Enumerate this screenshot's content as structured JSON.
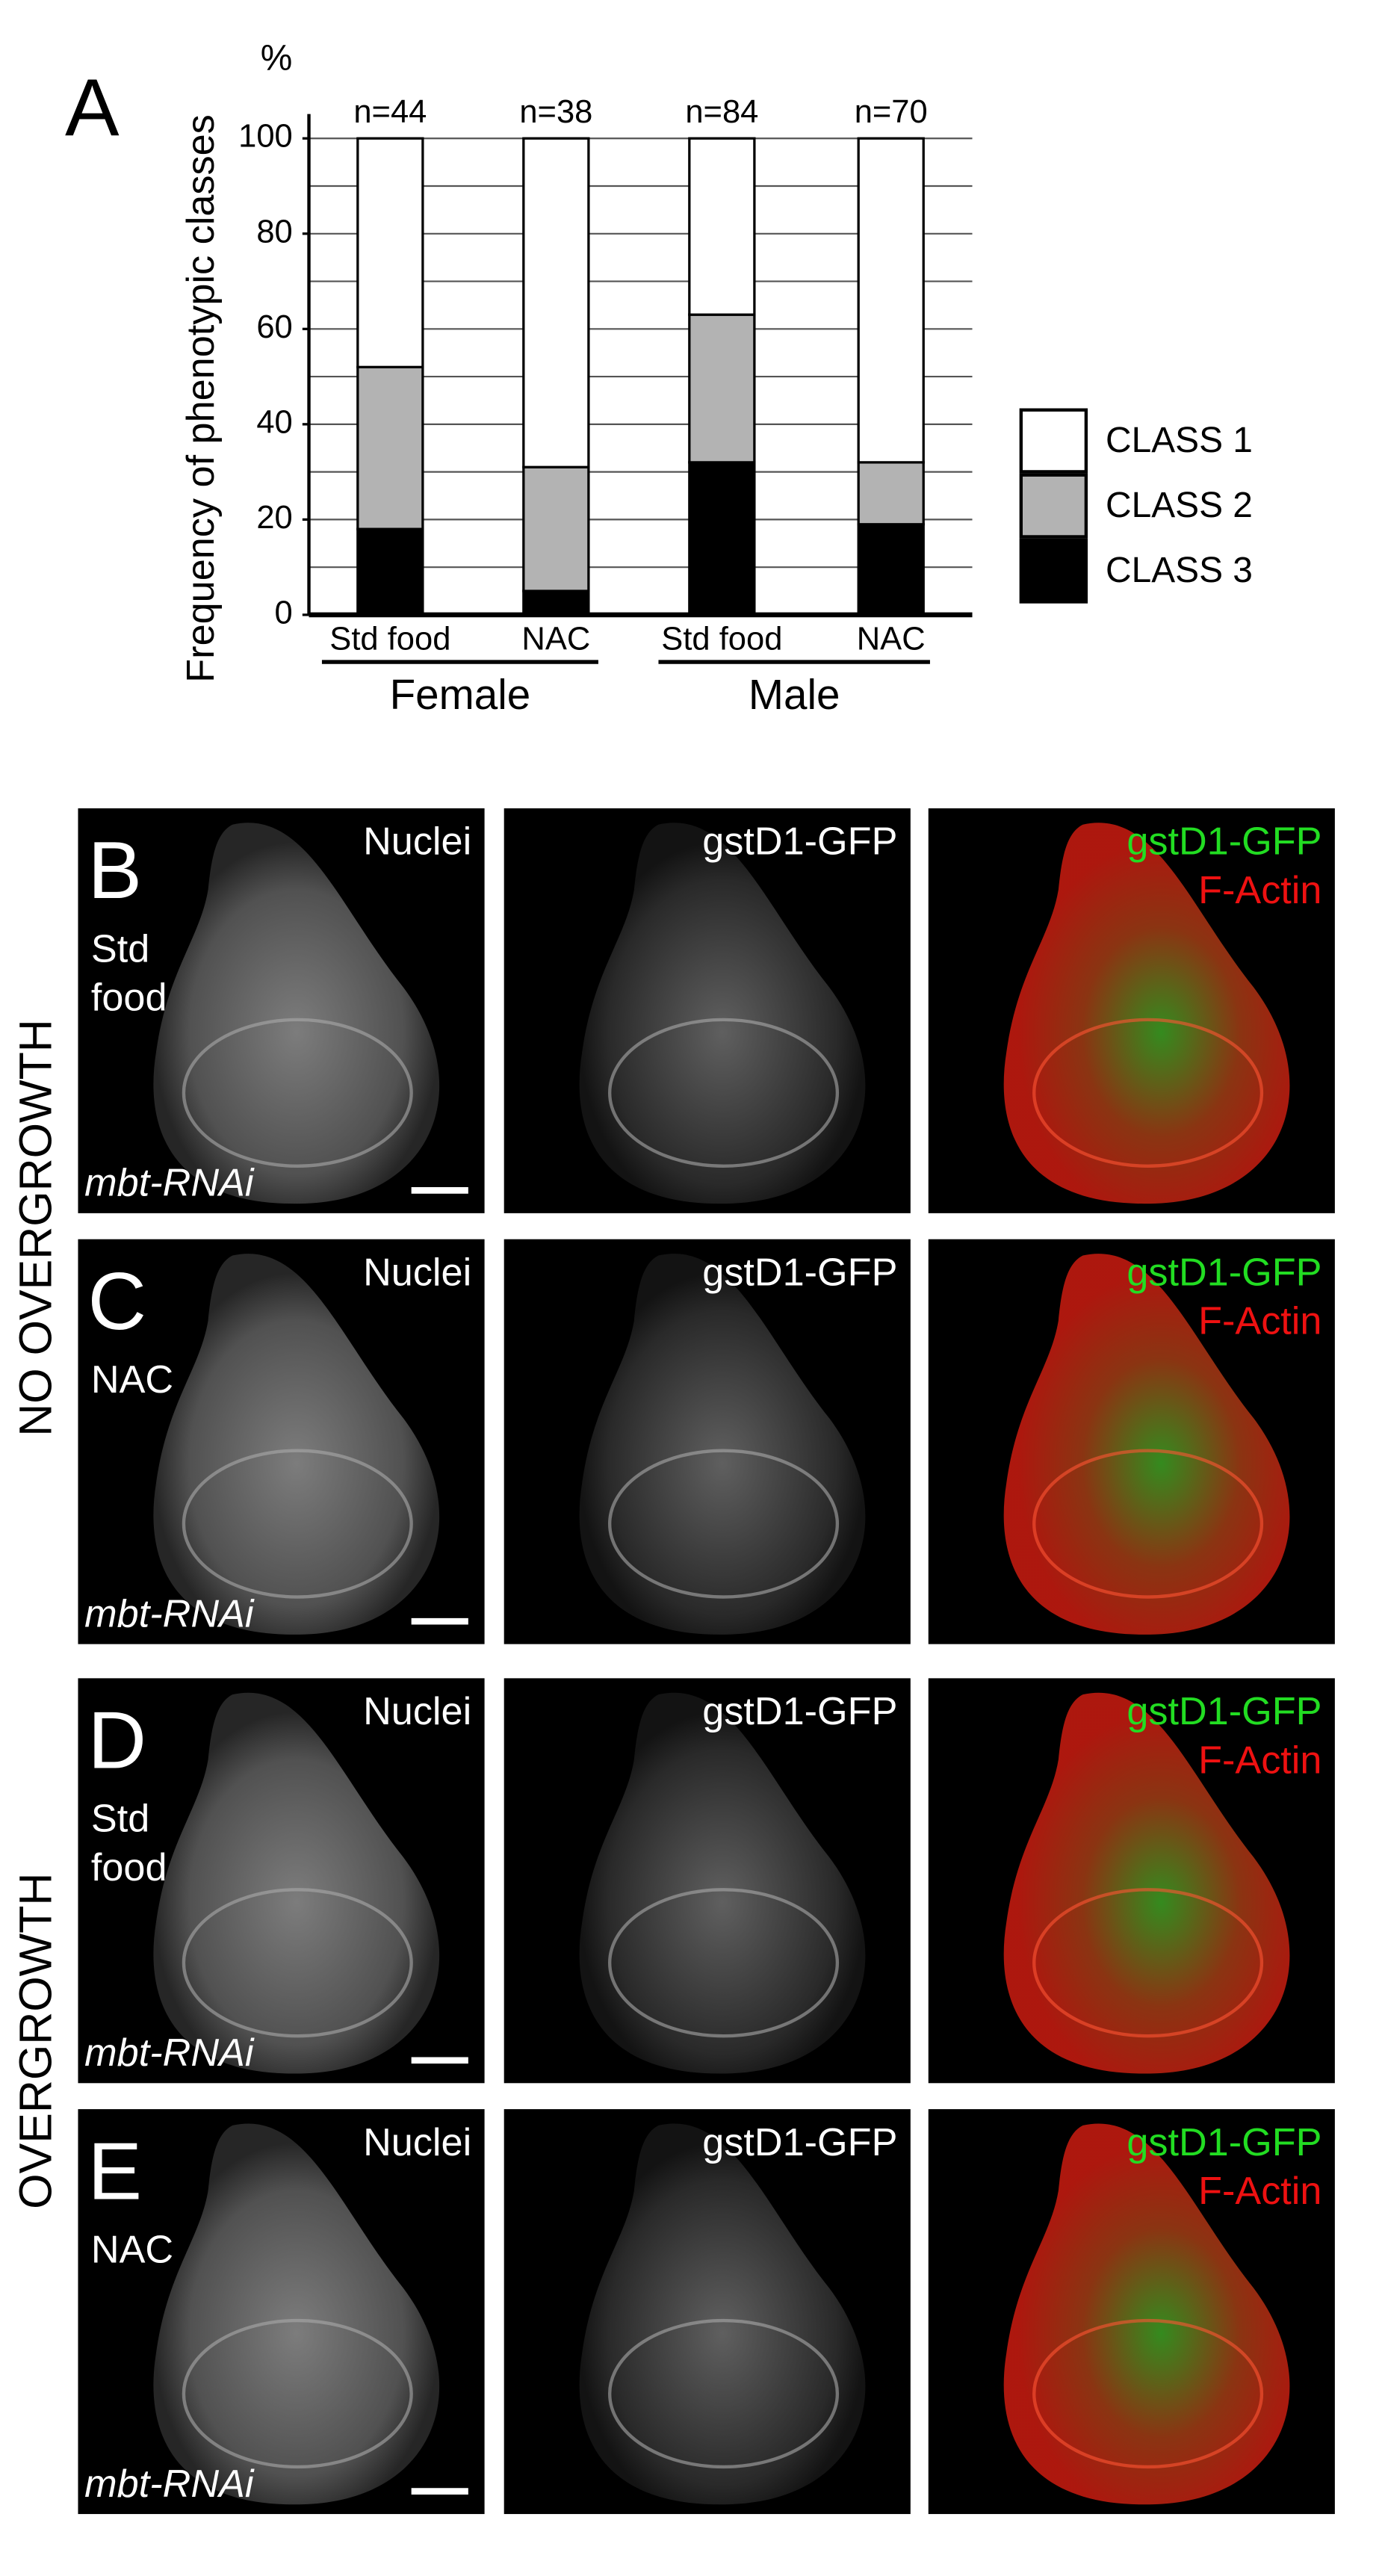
{
  "chart_data": {
    "type": "bar",
    "stacked": true,
    "panel_label": "A",
    "unit_label": "%",
    "y_label": "Frequency of phenotypic classes",
    "categories": [
      "Std food",
      "NAC",
      "Std food",
      "NAC"
    ],
    "group_labels": [
      "Female",
      "Male"
    ],
    "annotations": [
      "n=44",
      "n=38",
      "n=84",
      "n=70"
    ],
    "series": [
      {
        "name": "CLASS 3",
        "color": "#000000",
        "values": [
          18,
          5,
          32,
          19
        ]
      },
      {
        "name": "CLASS 2",
        "color": "#b3b3b3",
        "values": [
          34,
          26,
          31,
          13
        ]
      },
      {
        "name": "CLASS 1",
        "color": "#ffffff",
        "values": [
          48,
          69,
          37,
          68
        ]
      }
    ],
    "ylim": [
      0,
      100
    ],
    "yticks": [
      0,
      20,
      40,
      60,
      80,
      100
    ],
    "ygrid": [
      10,
      20,
      30,
      40,
      50,
      60,
      70,
      80,
      90,
      100
    ],
    "legend": "right"
  },
  "row_groups": [
    "NO OVERGROWTH",
    "OVERGROWTH"
  ],
  "panels": [
    {
      "letter": "B",
      "condition": [
        "Std",
        "food"
      ],
      "genotype": "mbt-RNAi",
      "images": [
        {
          "labels": [
            {
              "text": "Nuclei",
              "color": "#ffffff"
            }
          ]
        },
        {
          "labels": [
            {
              "text": "gstD1-GFP",
              "color": "#ffffff"
            }
          ]
        },
        {
          "labels": [
            {
              "text": "gstD1-GFP",
              "color": "#22dd22"
            },
            {
              "text": "F-Actin",
              "color": "#ee1111"
            }
          ]
        }
      ]
    },
    {
      "letter": "C",
      "condition": [
        "NAC"
      ],
      "genotype": "mbt-RNAi",
      "images": [
        {
          "labels": [
            {
              "text": "Nuclei",
              "color": "#ffffff"
            }
          ]
        },
        {
          "labels": [
            {
              "text": "gstD1-GFP",
              "color": "#ffffff"
            }
          ]
        },
        {
          "labels": [
            {
              "text": "gstD1-GFP",
              "color": "#22dd22"
            },
            {
              "text": "F-Actin",
              "color": "#ee1111"
            }
          ]
        }
      ]
    },
    {
      "letter": "D",
      "condition": [
        "Std",
        "food"
      ],
      "genotype": "mbt-RNAi",
      "images": [
        {
          "labels": [
            {
              "text": "Nuclei",
              "color": "#ffffff"
            }
          ]
        },
        {
          "labels": [
            {
              "text": "gstD1-GFP",
              "color": "#ffffff"
            }
          ]
        },
        {
          "labels": [
            {
              "text": "gstD1-GFP",
              "color": "#22dd22"
            },
            {
              "text": "F-Actin",
              "color": "#ee1111"
            }
          ]
        }
      ]
    },
    {
      "letter": "E",
      "condition": [
        "NAC"
      ],
      "genotype": "mbt-RNAi",
      "images": [
        {
          "labels": [
            {
              "text": "Nuclei",
              "color": "#ffffff"
            }
          ]
        },
        {
          "labels": [
            {
              "text": "gstD1-GFP",
              "color": "#ffffff"
            }
          ]
        },
        {
          "labels": [
            {
              "text": "gstD1-GFP",
              "color": "#22dd22"
            },
            {
              "text": "F-Actin",
              "color": "#ee1111"
            }
          ]
        }
      ]
    }
  ]
}
